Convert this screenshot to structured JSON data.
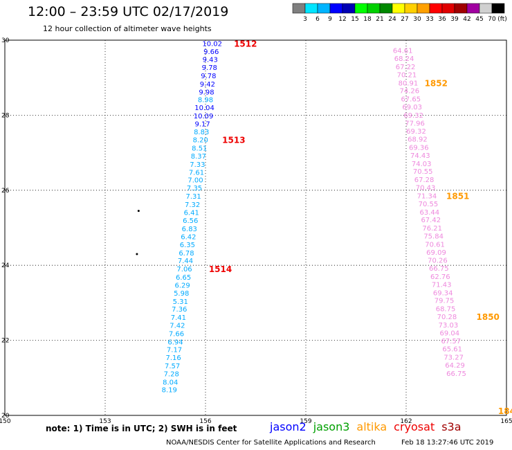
{
  "header": {
    "title": "12:00 – 23:59 UTC 02/17/2019",
    "subtitle": "12 hour collection of altimeter wave heights"
  },
  "colorbar": {
    "colors": [
      "#7f7f7f",
      "#00e5ff",
      "#00b4ff",
      "#0000ff",
      "#0000b4",
      "#00ff00",
      "#00d000",
      "#008800",
      "#ffff00",
      "#ffd000",
      "#ffa000",
      "#ff0000",
      "#e00000",
      "#a00000",
      "#a000a0",
      "#d0d0d0",
      "#000000"
    ],
    "labels": [
      "3",
      "6",
      "9",
      "12",
      "15",
      "18",
      "21",
      "24",
      "27",
      "30",
      "33",
      "36",
      "39",
      "42",
      "45",
      "70"
    ],
    "unit": "(ft)"
  },
  "note": "note: 1) Time is in UTC; 2) SWH is in feet",
  "satellites": [
    {
      "name": "jason2",
      "color": "#0000ff"
    },
    {
      "name": "jason3",
      "color": "#00a000"
    },
    {
      "name": "altika",
      "color": "#ff9900"
    },
    {
      "name": "cryosat",
      "color": "#ee0000"
    },
    {
      "name": "s3a",
      "color": "#a00000"
    }
  ],
  "footer": {
    "credit": "NOAA/NESDIS Center for Satellite Applications and Research",
    "timestamp": "Feb 18 13:27:46 UTC 2019"
  },
  "chart_data": {
    "type": "scatter",
    "xlim": [
      150,
      165
    ],
    "ylim": [
      20,
      30
    ],
    "xticks": [
      "150",
      "153",
      "156",
      "159",
      "162",
      "165"
    ],
    "yticks": [
      "20",
      "22",
      "24",
      "26",
      "28",
      "30"
    ],
    "grid": true,
    "tracks": [
      {
        "satellite": "cryosat",
        "color_scale": true,
        "points": [
          {
            "x": 156.2,
            "y": 29.9,
            "v": "10.02",
            "c": "#0000ff"
          },
          {
            "x": 156.17,
            "y": 29.69,
            "v": "9.66",
            "c": "#0000ff"
          },
          {
            "x": 156.14,
            "y": 29.47,
            "v": "9.43",
            "c": "#0000ff"
          },
          {
            "x": 156.12,
            "y": 29.26,
            "v": "9.78",
            "c": "#0000ff"
          },
          {
            "x": 156.09,
            "y": 29.04,
            "v": "9.78",
            "c": "#0000ff"
          },
          {
            "x": 156.06,
            "y": 28.82,
            "v": "9.42",
            "c": "#0000ff"
          },
          {
            "x": 156.03,
            "y": 28.61,
            "v": "9.98",
            "c": "#0000ff"
          },
          {
            "x": 156.0,
            "y": 28.4,
            "v": "8.98",
            "c": "#00aaff"
          },
          {
            "x": 155.97,
            "y": 28.19,
            "v": "10.04",
            "c": "#0000ff"
          },
          {
            "x": 155.94,
            "y": 27.97,
            "v": "10.09",
            "c": "#0000ff"
          },
          {
            "x": 155.91,
            "y": 27.76,
            "v": "9.17",
            "c": "#0000ff"
          },
          {
            "x": 155.88,
            "y": 27.55,
            "v": "8.83",
            "c": "#00aaff"
          },
          {
            "x": 155.85,
            "y": 27.33,
            "v": "8.20",
            "c": "#00aaff"
          },
          {
            "x": 155.82,
            "y": 27.11,
            "v": "8.51",
            "c": "#00aaff"
          },
          {
            "x": 155.79,
            "y": 26.9,
            "v": "8.37",
            "c": "#00aaff"
          },
          {
            "x": 155.76,
            "y": 26.68,
            "v": "7.33",
            "c": "#00aaff"
          },
          {
            "x": 155.73,
            "y": 26.47,
            "v": "7.61",
            "c": "#00aaff"
          },
          {
            "x": 155.7,
            "y": 26.26,
            "v": "7.00",
            "c": "#00aaff"
          },
          {
            "x": 155.67,
            "y": 26.05,
            "v": "7.35",
            "c": "#00aaff"
          },
          {
            "x": 155.64,
            "y": 25.83,
            "v": "7.31",
            "c": "#00aaff"
          },
          {
            "x": 155.61,
            "y": 25.61,
            "v": "7.32",
            "c": "#00aaff"
          },
          {
            "x": 155.58,
            "y": 25.4,
            "v": "6.41",
            "c": "#00aaff"
          },
          {
            "x": 155.55,
            "y": 25.18,
            "v": "6.56",
            "c": "#00aaff"
          },
          {
            "x": 155.52,
            "y": 24.96,
            "v": "6.83",
            "c": "#00aaff"
          },
          {
            "x": 155.49,
            "y": 24.75,
            "v": "6.42",
            "c": "#00aaff"
          },
          {
            "x": 155.46,
            "y": 24.54,
            "v": "6.35",
            "c": "#00aaff"
          },
          {
            "x": 155.43,
            "y": 24.32,
            "v": "6.78",
            "c": "#00aaff"
          },
          {
            "x": 155.4,
            "y": 24.11,
            "v": "7.44",
            "c": "#00aaff"
          },
          {
            "x": 155.37,
            "y": 23.89,
            "v": "7.06",
            "c": "#00aaff"
          },
          {
            "x": 155.34,
            "y": 23.67,
            "v": "6.65",
            "c": "#00aaff"
          },
          {
            "x": 155.31,
            "y": 23.46,
            "v": "6.29",
            "c": "#00aaff"
          },
          {
            "x": 155.28,
            "y": 23.25,
            "v": "5.98",
            "c": "#00aaff"
          },
          {
            "x": 155.25,
            "y": 23.03,
            "v": "5.31",
            "c": "#00aaff"
          },
          {
            "x": 155.22,
            "y": 22.82,
            "v": "7.36",
            "c": "#00aaff"
          },
          {
            "x": 155.19,
            "y": 22.6,
            "v": "7.41",
            "c": "#00aaff"
          },
          {
            "x": 155.16,
            "y": 22.39,
            "v": "7.42",
            "c": "#00aaff"
          },
          {
            "x": 155.13,
            "y": 22.17,
            "v": "7.66",
            "c": "#00aaff"
          },
          {
            "x": 155.1,
            "y": 21.95,
            "v": "6.94",
            "c": "#00aaff"
          },
          {
            "x": 155.07,
            "y": 21.74,
            "v": "7.17",
            "c": "#00aaff"
          },
          {
            "x": 155.04,
            "y": 21.53,
            "v": "7.16",
            "c": "#00aaff"
          },
          {
            "x": 155.01,
            "y": 21.31,
            "v": "7.57",
            "c": "#00aaff"
          },
          {
            "x": 154.98,
            "y": 21.1,
            "v": "7.28",
            "c": "#00aaff"
          },
          {
            "x": 154.95,
            "y": 20.88,
            "v": "8.04",
            "c": "#00aaff"
          },
          {
            "x": 154.92,
            "y": 20.67,
            "v": "8.19",
            "c": "#00aaff"
          }
        ],
        "time_labels": [
          {
            "x": 156.85,
            "y": 29.9,
            "text": "1512"
          },
          {
            "x": 156.5,
            "y": 27.33,
            "text": "1513"
          },
          {
            "x": 156.1,
            "y": 23.89,
            "text": "1514"
          }
        ]
      },
      {
        "satellite": "altika",
        "color_scale": true,
        "points": [
          {
            "x": 161.9,
            "y": 29.71,
            "v": "64.61",
            "c": "#ee88dd"
          },
          {
            "x": 161.94,
            "y": 29.5,
            "v": "68.24",
            "c": "#ee88dd"
          },
          {
            "x": 161.98,
            "y": 29.28,
            "v": "67.22",
            "c": "#ee88dd"
          },
          {
            "x": 162.02,
            "y": 29.07,
            "v": "70.21",
            "c": "#ee88dd"
          },
          {
            "x": 162.06,
            "y": 28.85,
            "v": "80.91",
            "c": "#ee88dd"
          },
          {
            "x": 162.1,
            "y": 28.64,
            "v": "74.26",
            "c": "#ee88dd"
          },
          {
            "x": 162.14,
            "y": 28.42,
            "v": "67.65",
            "c": "#ee88dd"
          },
          {
            "x": 162.18,
            "y": 28.21,
            "v": "69.03",
            "c": "#ee88dd"
          },
          {
            "x": 162.22,
            "y": 27.99,
            "v": "69.32",
            "c": "#ee88dd"
          },
          {
            "x": 162.26,
            "y": 27.78,
            "v": "77.96",
            "c": "#ee88dd"
          },
          {
            "x": 162.3,
            "y": 27.56,
            "v": "69.32",
            "c": "#ee88dd"
          },
          {
            "x": 162.34,
            "y": 27.35,
            "v": "68.92",
            "c": "#ee88dd"
          },
          {
            "x": 162.38,
            "y": 27.13,
            "v": "69.36",
            "c": "#ee88dd"
          },
          {
            "x": 162.42,
            "y": 26.92,
            "v": "74.43",
            "c": "#ee88dd"
          },
          {
            "x": 162.46,
            "y": 26.7,
            "v": "74.03",
            "c": "#ee88dd"
          },
          {
            "x": 162.5,
            "y": 26.49,
            "v": "70.55",
            "c": "#ee88dd"
          },
          {
            "x": 162.54,
            "y": 26.27,
            "v": "67.28",
            "c": "#ee88dd"
          },
          {
            "x": 162.58,
            "y": 26.06,
            "v": "70.43",
            "c": "#ee88dd"
          },
          {
            "x": 162.62,
            "y": 25.84,
            "v": "71.34",
            "c": "#ee88dd"
          },
          {
            "x": 162.66,
            "y": 25.63,
            "v": "70.55",
            "c": "#ee88dd"
          },
          {
            "x": 162.7,
            "y": 25.41,
            "v": "63.44",
            "c": "#ee88dd"
          },
          {
            "x": 162.74,
            "y": 25.2,
            "v": "67.42",
            "c": "#ee88dd"
          },
          {
            "x": 162.78,
            "y": 24.98,
            "v": "76.21",
            "c": "#ee88dd"
          },
          {
            "x": 162.82,
            "y": 24.77,
            "v": "75.84",
            "c": "#ee88dd"
          },
          {
            "x": 162.86,
            "y": 24.55,
            "v": "70.61",
            "c": "#ee88dd"
          },
          {
            "x": 162.9,
            "y": 24.34,
            "v": "69.09",
            "c": "#ee88dd"
          },
          {
            "x": 162.94,
            "y": 24.12,
            "v": "70.26",
            "c": "#ee88dd"
          },
          {
            "x": 162.98,
            "y": 23.91,
            "v": "66.75",
            "c": "#ee88dd"
          },
          {
            "x": 163.02,
            "y": 23.69,
            "v": "62.76",
            "c": "#ee88dd"
          },
          {
            "x": 163.06,
            "y": 23.48,
            "v": "71.43",
            "c": "#ee88dd"
          },
          {
            "x": 163.1,
            "y": 23.26,
            "v": "69.34",
            "c": "#ee88dd"
          },
          {
            "x": 163.14,
            "y": 23.05,
            "v": "79.75",
            "c": "#ee88dd"
          },
          {
            "x": 163.18,
            "y": 22.83,
            "v": "68.75",
            "c": "#ee88dd"
          },
          {
            "x": 163.22,
            "y": 22.62,
            "v": "70.28",
            "c": "#ee88dd"
          },
          {
            "x": 163.26,
            "y": 22.4,
            "v": "73.03",
            "c": "#ee88dd"
          },
          {
            "x": 163.3,
            "y": 22.19,
            "v": "69.04",
            "c": "#ee88dd"
          },
          {
            "x": 163.34,
            "y": 21.97,
            "v": "67.57",
            "c": "#ee88dd"
          },
          {
            "x": 163.38,
            "y": 21.76,
            "v": "65.61",
            "c": "#ee88dd"
          },
          {
            "x": 163.42,
            "y": 21.54,
            "v": "73.27",
            "c": "#ee88dd"
          },
          {
            "x": 163.46,
            "y": 21.33,
            "v": "64.29",
            "c": "#ee88dd"
          },
          {
            "x": 163.5,
            "y": 21.11,
            "v": "66.75",
            "c": "#ee88dd"
          }
        ],
        "time_labels": [
          {
            "x": 162.55,
            "y": 28.85,
            "text": "1852"
          },
          {
            "x": 163.2,
            "y": 25.84,
            "text": "1851"
          },
          {
            "x": 164.1,
            "y": 22.62,
            "text": "1850"
          },
          {
            "x": 164.75,
            "y": 20.11,
            "text": "184"
          }
        ]
      }
    ],
    "extra_points": [
      {
        "x": 154.0,
        "y": 25.45
      },
      {
        "x": 153.95,
        "y": 24.3
      }
    ]
  }
}
